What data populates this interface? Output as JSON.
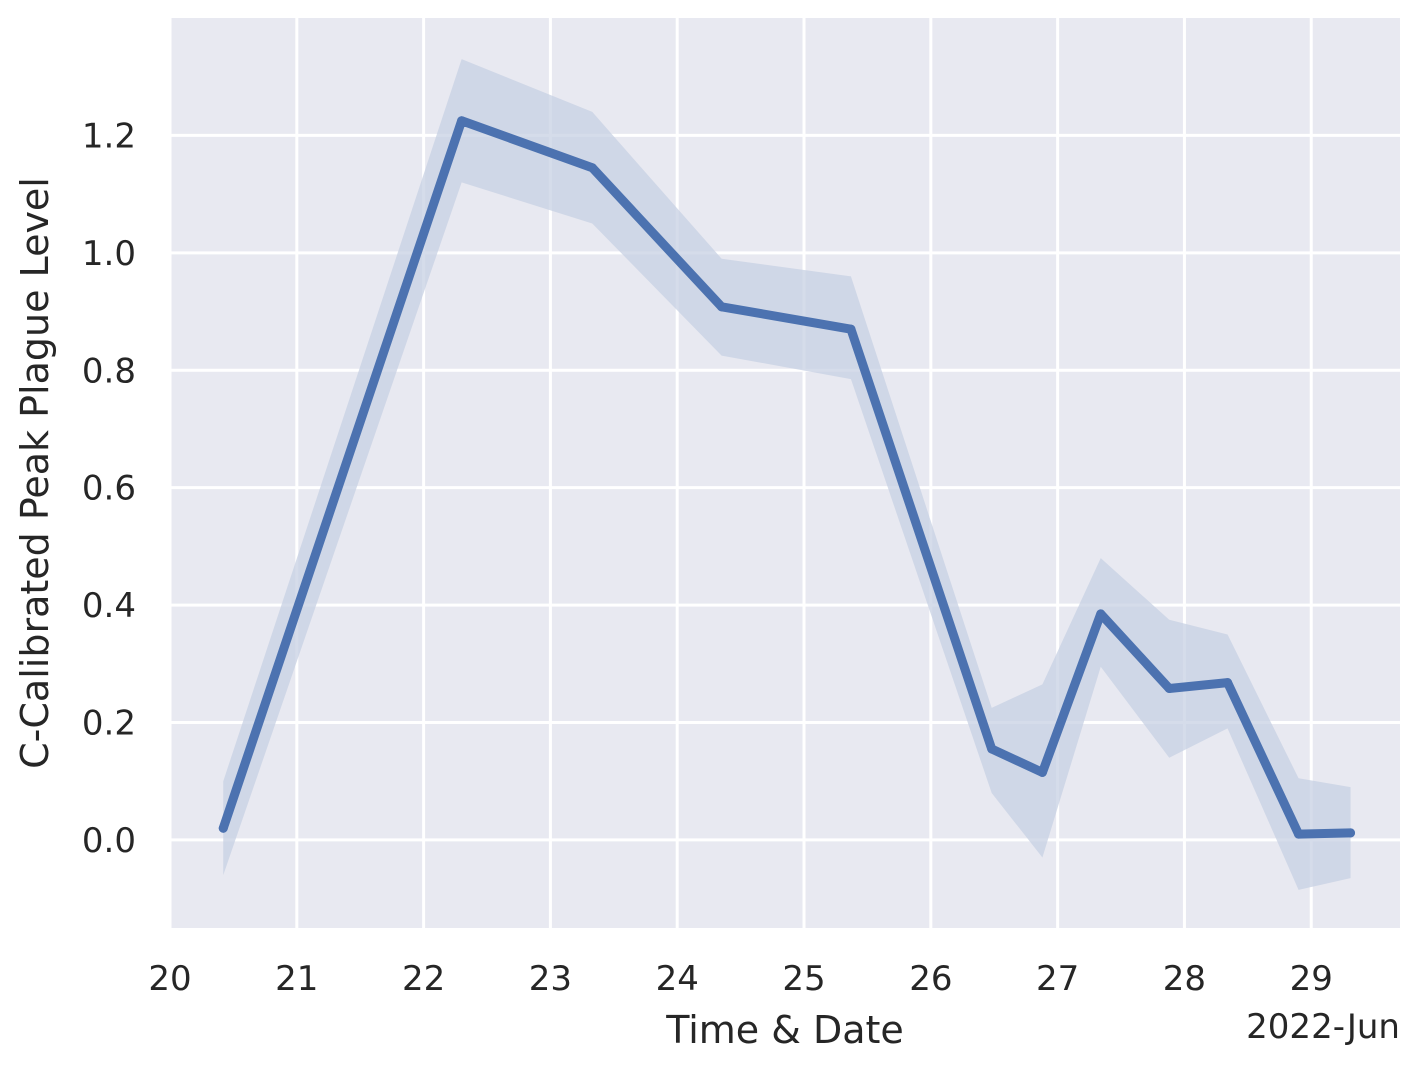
{
  "chart_data": {
    "type": "line",
    "title": "",
    "xlabel": "Time & Date",
    "ylabel": "C-Calibrated Peak Plague Level",
    "x_offset_label": "2022-Jun",
    "xlim": [
      20,
      29.7
    ],
    "ylim": [
      -0.15,
      1.4
    ],
    "x_ticks": [
      20,
      21,
      22,
      23,
      24,
      25,
      26,
      27,
      28,
      29
    ],
    "x_tick_labels": [
      "20",
      "21",
      "22",
      "23",
      "24",
      "25",
      "26",
      "27",
      "28",
      "29"
    ],
    "y_ticks": [
      0.0,
      0.2,
      0.4,
      0.6,
      0.8,
      1.0,
      1.2
    ],
    "y_tick_labels": [
      "0.0",
      "0.2",
      "0.4",
      "0.6",
      "0.8",
      "1.0",
      "1.2"
    ],
    "grid": true,
    "background_color": "#e8e9f1",
    "grid_color": "#ffffff",
    "series": [
      {
        "color": "#4c72b0",
        "band_color": "#c7d0e3",
        "points": [
          {
            "x": 20.42,
            "y": 0.02,
            "lo": -0.06,
            "hi": 0.1
          },
          {
            "x": 22.3,
            "y": 1.225,
            "lo": 1.12,
            "hi": 1.33
          },
          {
            "x": 23.33,
            "y": 1.145,
            "lo": 1.05,
            "hi": 1.24
          },
          {
            "x": 24.35,
            "y": 0.908,
            "lo": 0.825,
            "hi": 0.99
          },
          {
            "x": 25.37,
            "y": 0.87,
            "lo": 0.785,
            "hi": 0.96
          },
          {
            "x": 26.48,
            "y": 0.155,
            "lo": 0.08,
            "hi": 0.225
          },
          {
            "x": 26.88,
            "y": 0.115,
            "lo": -0.03,
            "hi": 0.265
          },
          {
            "x": 27.34,
            "y": 0.385,
            "lo": 0.295,
            "hi": 0.48
          },
          {
            "x": 27.88,
            "y": 0.258,
            "lo": 0.14,
            "hi": 0.375
          },
          {
            "x": 28.34,
            "y": 0.268,
            "lo": 0.19,
            "hi": 0.35
          },
          {
            "x": 28.9,
            "y": 0.01,
            "lo": -0.085,
            "hi": 0.105
          },
          {
            "x": 29.31,
            "y": 0.012,
            "lo": -0.065,
            "hi": 0.09
          }
        ]
      }
    ]
  }
}
